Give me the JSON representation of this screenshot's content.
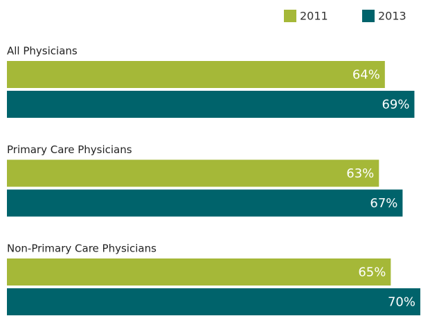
{
  "chart_data": {
    "type": "hbar",
    "categories": [
      "All Physicians",
      "Primary Care Physicians",
      "Non-Primary Care Physicians"
    ],
    "series": [
      {
        "name": "2011",
        "color": "#a5b838",
        "values": [
          64,
          63,
          65
        ],
        "value_labels": [
          "64%",
          "63%",
          "65%"
        ]
      },
      {
        "name": "2013",
        "color": "#00636b",
        "values": [
          69,
          67,
          70
        ],
        "value_labels": [
          "69%",
          "67%",
          "70%"
        ]
      }
    ]
  }
}
